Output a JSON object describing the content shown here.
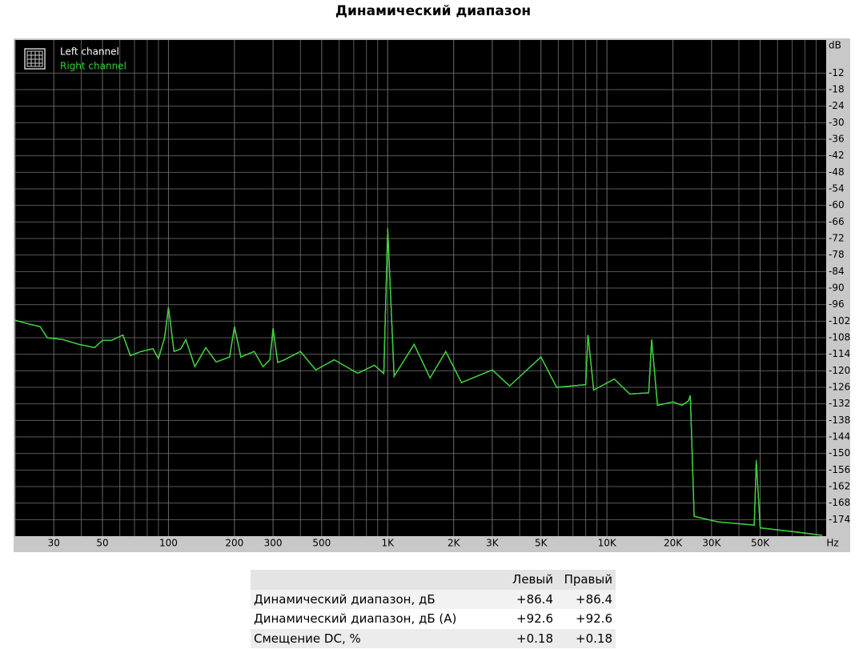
{
  "chart_data": {
    "type": "line",
    "title": "Динамический диапазон",
    "xlabel": "Hz",
    "ylabel": "dB",
    "xlog": true,
    "grid": true,
    "xlim": [
      20,
      100000
    ],
    "ylim": [
      -180,
      0
    ],
    "xticks": [
      30,
      50,
      100,
      200,
      300,
      500,
      {
        "value": 1000,
        "label": "1K"
      },
      {
        "value": 2000,
        "label": "2K"
      },
      {
        "value": 3000,
        "label": "3K"
      },
      {
        "value": 5000,
        "label": "5K"
      },
      {
        "value": 10000,
        "label": "10K"
      },
      {
        "value": 20000,
        "label": "20K"
      },
      {
        "value": 30000,
        "label": "30K"
      },
      {
        "value": 50000,
        "label": "50K"
      }
    ],
    "xminorticks": [
      20,
      40,
      60,
      70,
      80,
      90,
      400,
      600,
      700,
      800,
      900,
      4000,
      6000,
      7000,
      8000,
      9000,
      40000,
      60000,
      70000,
      80000,
      90000
    ],
    "yticks": [
      -12,
      -18,
      -24,
      -30,
      -36,
      -42,
      -48,
      -54,
      -60,
      -66,
      -72,
      -78,
      -84,
      -90,
      -96,
      -102,
      -108,
      -114,
      -120,
      -126,
      -132,
      -138,
      -144,
      -150,
      -156,
      -162,
      -168,
      -174
    ],
    "legend": "upper left",
    "x": [
      20,
      23,
      26,
      28,
      33,
      39,
      46,
      50,
      55,
      62,
      67,
      75,
      85,
      90,
      96,
      100,
      106,
      114,
      120,
      132,
      148,
      165,
      190,
      200,
      214,
      246,
      270,
      290,
      300,
      315,
      338,
      400,
      470,
      570,
      730,
      870,
      960,
      1000,
      1070,
      1320,
      1560,
      1840,
      2170,
      3000,
      3600,
      5000,
      5900,
      8000,
      8200,
      8700,
      10800,
      12700,
      15500,
      16000,
      17000,
      20000,
      22000,
      23500,
      24000,
      25000,
      32000,
      47000,
      48000,
      50000,
      75000,
      96000
    ],
    "series": [
      {
        "name": "Left channel",
        "color": "#ffffff",
        "values": [
          -101.7,
          -103,
          -104,
          -108,
          -108.7,
          -110.4,
          -111.6,
          -109,
          -109,
          -107,
          -114.5,
          -113,
          -112,
          -115.6,
          -108,
          -97,
          -113,
          -112,
          -108.7,
          -118.5,
          -111.6,
          -116.8,
          -115,
          -104,
          -115,
          -113,
          -118.5,
          -116,
          -104.6,
          -117,
          -116,
          -113,
          -119.7,
          -116,
          -120.9,
          -118,
          -121,
          -68.4,
          -122,
          -110.4,
          -122.6,
          -113,
          -124.3,
          -119.7,
          -125.5,
          -115,
          -126,
          -125,
          -107,
          -127,
          -123,
          -128.4,
          -128,
          -108.7,
          -132.5,
          -131.3,
          -132.5,
          -131,
          -129,
          -172.8,
          -174.8,
          -176,
          -152.5,
          -177,
          -178.6,
          -179.7
        ]
      },
      {
        "name": "Right channel",
        "color": "#2fd62f",
        "values": [
          -101.7,
          -103,
          -104,
          -108,
          -108.7,
          -110.4,
          -111.6,
          -109,
          -109,
          -107,
          -114.5,
          -113,
          -112,
          -115.6,
          -108,
          -97,
          -113,
          -112,
          -108.7,
          -118.5,
          -111.6,
          -116.8,
          -115,
          -104,
          -115,
          -113,
          -118.5,
          -116,
          -104.6,
          -117,
          -116,
          -113,
          -119.7,
          -116,
          -120.9,
          -118,
          -121,
          -68.4,
          -122,
          -110.4,
          -122.6,
          -113,
          -124.3,
          -119.7,
          -125.5,
          -115,
          -126,
          -125,
          -107,
          -127,
          -123,
          -128.4,
          -128,
          -108.7,
          -132.5,
          -131.3,
          -132.5,
          -131,
          -129,
          -172.8,
          -174.8,
          -176,
          -152.5,
          -177,
          -178.6,
          -179.7
        ]
      }
    ]
  },
  "table": {
    "header": [
      "Левый",
      "Правый"
    ],
    "rows": [
      {
        "label": "Динамический диапазон, дБ",
        "values": [
          "+86.4",
          "+86.4"
        ]
      },
      {
        "label": "Динамический диапазон, дБ (А)",
        "values": [
          "+92.6",
          "+92.6"
        ]
      },
      {
        "label": "Смещение DC, %",
        "values": [
          "+0.18",
          "+0.18"
        ]
      }
    ]
  }
}
